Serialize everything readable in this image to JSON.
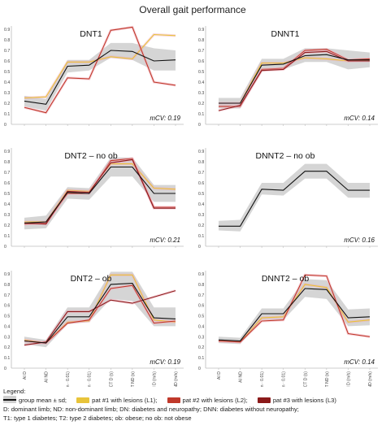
{
  "figure_title": "Overall gait performance",
  "colors": {
    "band": "#d3d3d3",
    "mean": "#111111",
    "p1": "#e8c43a",
    "p2": "#c0392b",
    "p3": "#8b1a1a",
    "p2_band": "#f2a6b6"
  },
  "chart_data": [
    {
      "type": "line",
      "title": "DNT1",
      "note": "mCV: 0.19",
      "ylim": [
        0,
        0.9
      ],
      "yticks": [
        "0",
        "0.1",
        "0.2",
        "0.3",
        "0.4",
        "0.5",
        "0.6",
        "0.7",
        "0.8",
        "0.9"
      ],
      "x_ticklabels": [],
      "band": {
        "upper": [
          0.27,
          0.24,
          0.61,
          0.61,
          0.77,
          0.77,
          0.72,
          0.7
        ],
        "lower": [
          0.17,
          0.13,
          0.49,
          0.51,
          0.63,
          0.61,
          0.51,
          0.51
        ]
      },
      "mean": [
        0.22,
        0.19,
        0.55,
        0.56,
        0.7,
        0.69,
        0.6,
        0.61
      ],
      "series": [
        {
          "name": "pat #1 with lesions (L1)",
          "color": "#e8c43a",
          "values": [
            0.25,
            0.26,
            0.59,
            0.59,
            0.64,
            0.62,
            0.85,
            0.84
          ]
        },
        {
          "name": "pat #2 with lesions (L2)",
          "color": "#c0392b",
          "values": [
            0.16,
            0.11,
            0.44,
            0.43,
            0.89,
            0.92,
            0.4,
            0.37
          ]
        }
      ]
    },
    {
      "type": "line",
      "title": "DNNT1",
      "note": "mCV: 0.14",
      "ylim": [
        0,
        0.9
      ],
      "yticks": [
        "0",
        "0.1",
        "0.2",
        "0.3",
        "0.4",
        "0.5",
        "0.6",
        "0.7",
        "0.8",
        "0.9"
      ],
      "x_ticklabels": [],
      "band": {
        "upper": [
          0.25,
          0.25,
          0.62,
          0.62,
          0.72,
          0.72,
          0.7,
          0.68
        ],
        "lower": [
          0.15,
          0.15,
          0.5,
          0.52,
          0.59,
          0.59,
          0.52,
          0.54
        ]
      },
      "mean": [
        0.2,
        0.2,
        0.56,
        0.57,
        0.65,
        0.66,
        0.61,
        0.61
      ],
      "series": [
        {
          "name": "pat #1 with lesions (L1)",
          "color": "#e8c43a",
          "values": [
            0.2,
            0.2,
            0.58,
            0.58,
            0.63,
            0.62,
            0.6,
            0.61
          ]
        },
        {
          "name": "pat #2 with lesions (L2)",
          "color": "#c0392b",
          "values": [
            0.17,
            0.17,
            0.52,
            0.53,
            0.7,
            0.71,
            0.61,
            0.62
          ]
        },
        {
          "name": "pat #3 with lesions (L3)",
          "color": "#8b1a1a",
          "values": [
            0.13,
            0.18,
            0.51,
            0.52,
            0.68,
            0.69,
            0.6,
            0.6
          ]
        }
      ]
    },
    {
      "type": "line",
      "title": "DNT2 – no ob",
      "note": "mCV: 0.21",
      "ylim": [
        0,
        0.9
      ],
      "yticks": [
        "0",
        "0.1",
        "0.2",
        "0.3",
        "0.4",
        "0.5",
        "0.6",
        "0.7",
        "0.8",
        "0.9"
      ],
      "x_ticklabels": [],
      "band": {
        "upper": [
          0.27,
          0.29,
          0.56,
          0.55,
          0.84,
          0.84,
          0.58,
          0.58
        ],
        "lower": [
          0.16,
          0.17,
          0.45,
          0.44,
          0.66,
          0.66,
          0.42,
          0.42
        ]
      },
      "mean": [
        0.22,
        0.23,
        0.51,
        0.5,
        0.75,
        0.75,
        0.5,
        0.5
      ],
      "series": [
        {
          "name": "pat #1 with lesions (L1)",
          "color": "#e8c43a",
          "values": [
            0.23,
            0.23,
            0.53,
            0.52,
            0.78,
            0.78,
            0.55,
            0.54
          ]
        },
        {
          "name": "pat #2 with lesions (L2)",
          "color": "#c0392b",
          "values": [
            0.21,
            0.22,
            0.5,
            0.5,
            0.81,
            0.83,
            0.37,
            0.37
          ]
        },
        {
          "name": "pat #3 with lesions (L3)",
          "color": "#8b1a1a",
          "values": [
            0.22,
            0.21,
            0.52,
            0.51,
            0.79,
            0.82,
            0.36,
            0.36
          ]
        }
      ]
    },
    {
      "type": "line",
      "title": "DNNT2 – no ob",
      "note": "mCV: 0.16",
      "ylim": [
        0,
        0.9
      ],
      "yticks": [
        "0",
        "0.1",
        "0.2",
        "0.3",
        "0.4",
        "0.5",
        "0.6",
        "0.7",
        "0.8",
        "0.9"
      ],
      "x_ticklabels": [],
      "band": {
        "upper": [
          0.24,
          0.25,
          0.6,
          0.6,
          0.78,
          0.78,
          0.6,
          0.6
        ],
        "lower": [
          0.15,
          0.14,
          0.49,
          0.48,
          0.64,
          0.64,
          0.46,
          0.46
        ]
      },
      "mean": [
        0.19,
        0.19,
        0.54,
        0.53,
        0.71,
        0.71,
        0.53,
        0.53
      ],
      "series": []
    },
    {
      "type": "line",
      "title": "DNT2 – ob",
      "note": "mCV: 0.19",
      "ylim": [
        0,
        0.9
      ],
      "yticks": [
        "0",
        "0.1",
        "0.2",
        "0.3",
        "0.4",
        "0.5",
        "0.6",
        "0.7",
        "0.8",
        "0.9"
      ],
      "x_ticklabels": [
        "AI D",
        "AI ND",
        "cad D (spm · 0.01)",
        "cad ND (spm · 0.01)",
        "CT D (s)",
        "CT ND (s)",
        "vel D (m/s)",
        "vel ND (m/s)"
      ],
      "band": {
        "upper": [
          0.3,
          0.27,
          0.58,
          0.58,
          0.92,
          0.92,
          0.58,
          0.58
        ],
        "lower": [
          0.23,
          0.2,
          0.42,
          0.44,
          0.66,
          0.64,
          0.4,
          0.4
        ]
      },
      "mean": [
        0.26,
        0.24,
        0.49,
        0.49,
        0.8,
        0.81,
        0.48,
        0.47
      ],
      "series": [
        {
          "name": "pat #1 with lesions (L1)",
          "color": "#e8c43a",
          "values": [
            0.27,
            0.24,
            0.44,
            0.45,
            0.89,
            0.89,
            0.46,
            0.44
          ]
        },
        {
          "name": "pat #2 with lesions (L2)",
          "color": "#c0392b",
          "values": [
            0.26,
            0.24,
            0.43,
            0.46,
            0.76,
            0.79,
            0.43,
            0.45
          ]
        },
        {
          "name": "pat #3 with lesions (L3)",
          "color": "#8b1a1a",
          "values": [
            0.22,
            0.25,
            0.54,
            0.54,
            0.65,
            0.62,
            0.68,
            0.74
          ]
        }
      ]
    },
    {
      "type": "line",
      "title": "DNNT2 – ob",
      "note": "mCV: 0.14",
      "ylim": [
        0,
        0.9
      ],
      "yticks": [
        "0",
        "0.1",
        "0.2",
        "0.3",
        "0.4",
        "0.5",
        "0.6",
        "0.7",
        "0.8",
        "0.9"
      ],
      "x_ticklabels": [
        "AI D",
        "AI ND",
        "cad D (spm · 0.01)",
        "cad ND (spm · 0.01)",
        "CT D (s)",
        "CT ND (s)",
        "vel D (m/s)",
        "vel ND (m/s)"
      ],
      "band": {
        "upper": [
          0.3,
          0.29,
          0.57,
          0.57,
          0.85,
          0.84,
          0.56,
          0.57
        ],
        "lower": [
          0.24,
          0.23,
          0.46,
          0.46,
          0.68,
          0.66,
          0.4,
          0.41
        ]
      },
      "mean": [
        0.27,
        0.26,
        0.52,
        0.52,
        0.76,
        0.75,
        0.48,
        0.49
      ],
      "series": [
        {
          "name": "pat #1 with lesions (L1)",
          "color": "#e8c43a",
          "values": [
            0.26,
            0.25,
            0.48,
            0.49,
            0.8,
            0.77,
            0.44,
            0.46
          ]
        },
        {
          "name": "pat #2 with lesions (L2)",
          "color": "#c0392b",
          "values": [
            0.26,
            0.25,
            0.45,
            0.46,
            0.89,
            0.88,
            0.33,
            0.3
          ]
        }
      ]
    }
  ],
  "legend": {
    "heading": "Legend:",
    "items": [
      {
        "label": "group mean ± sd;",
        "color": "#cfcfcf",
        "line": "#111111"
      },
      {
        "label": "pat #1 with lesions (L1);",
        "color": "#e8c43a"
      },
      {
        "label": "pat #2 with lesions (L2);",
        "color": "#c0392b"
      },
      {
        "label": "pat #3 with lesions (L3)",
        "color": "#8b1a1a"
      }
    ],
    "notes": [
      "D: dominant limb; ND: non-dominant limb; DN: diabetes and neuropathy; DNN: diabetes without neuropathy;",
      "T1: type 1 diabetes; T2: type 2 diabetes; ob: obese; no ob: not obese"
    ]
  }
}
